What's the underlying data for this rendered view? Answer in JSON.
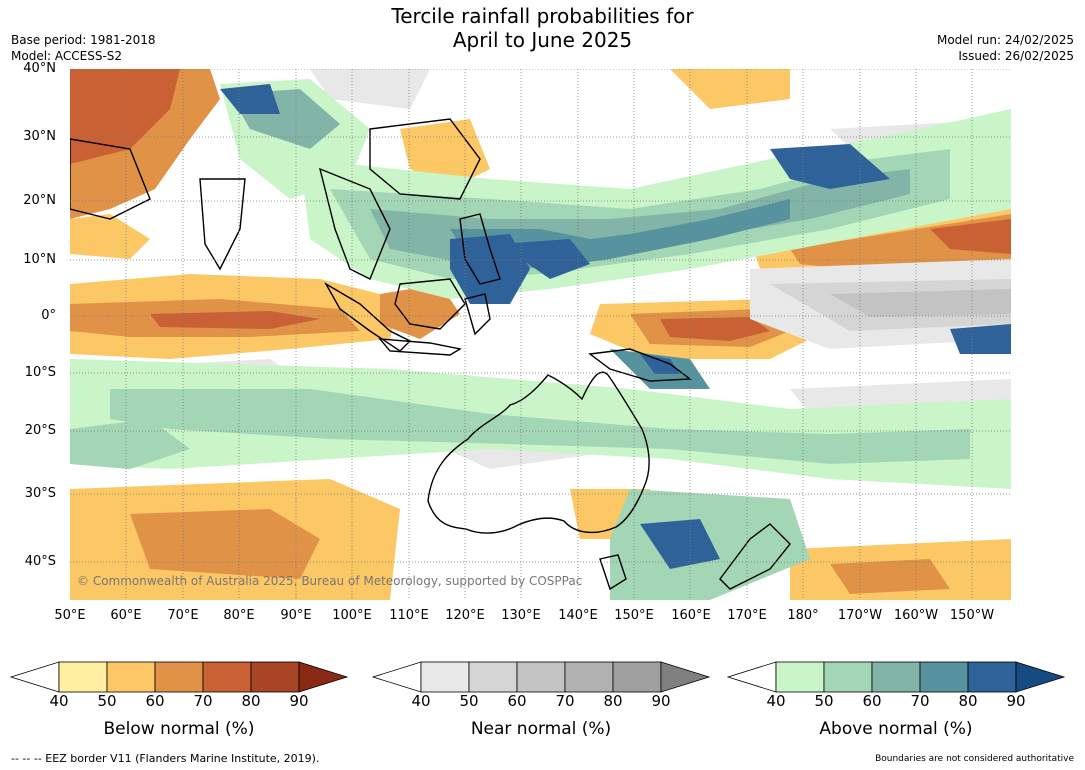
{
  "title": "Tercile rainfall probabilities for\nApril to June 2025",
  "title_line1": "Tercile rainfall probabilities for",
  "title_line2": "April to June 2025",
  "base_period": "Base period: 1981-2018",
  "model": "Model: ACCESS-S2",
  "model_run": "Model run: 24/02/2025",
  "issued": "Issued: 26/02/2025",
  "copyright": "© Commonwealth of Australia 2025, Bureau of Meteorology, supported by COSPPac",
  "eez_note": "--  --  -- EEZ border V11 (Flanders Marine Institute, 2019).",
  "disclaimer": "Boundaries are not considered authoritative",
  "lat_labels": [
    "40°N",
    "30°N",
    "20°N",
    "10°N",
    "0°",
    "10°S",
    "20°S",
    "30°S",
    "40°S"
  ],
  "lon_labels": [
    "50°E",
    "60°E",
    "70°E",
    "80°E",
    "90°E",
    "100°E",
    "110°E",
    "120°E",
    "130°E",
    "140°E",
    "150°E",
    "160°E",
    "170°E",
    "180°",
    "170°W",
    "160°W",
    "150°W"
  ],
  "colorbars": [
    {
      "title": "Below normal (%)",
      "ticks": [
        "40",
        "50",
        "60",
        "70",
        "80",
        "90"
      ],
      "colors": [
        "#ffffff",
        "#fef0a0",
        "#fcc865",
        "#e09247",
        "#c96134",
        "#a84525",
        "#8a2a14"
      ]
    },
    {
      "title": "Near normal (%)",
      "ticks": [
        "40",
        "50",
        "60",
        "70",
        "80",
        "90"
      ],
      "colors": [
        "#ffffff",
        "#e8e8e8",
        "#d5d5d5",
        "#c3c3c3",
        "#b1b1b1",
        "#9f9f9f",
        "#808080"
      ]
    },
    {
      "title": "Above normal (%)",
      "ticks": [
        "40",
        "50",
        "60",
        "70",
        "80",
        "90"
      ],
      "colors": [
        "#ffffff",
        "#c9f5c9",
        "#a2d6b4",
        "#82b4a8",
        "#57939e",
        "#30629a",
        "#154a83"
      ]
    }
  ],
  "colors": {
    "ocean_base": "#ffffff",
    "gridline": "#7a7a7a",
    "coast": "#000000",
    "border": "#8a8a8a"
  }
}
